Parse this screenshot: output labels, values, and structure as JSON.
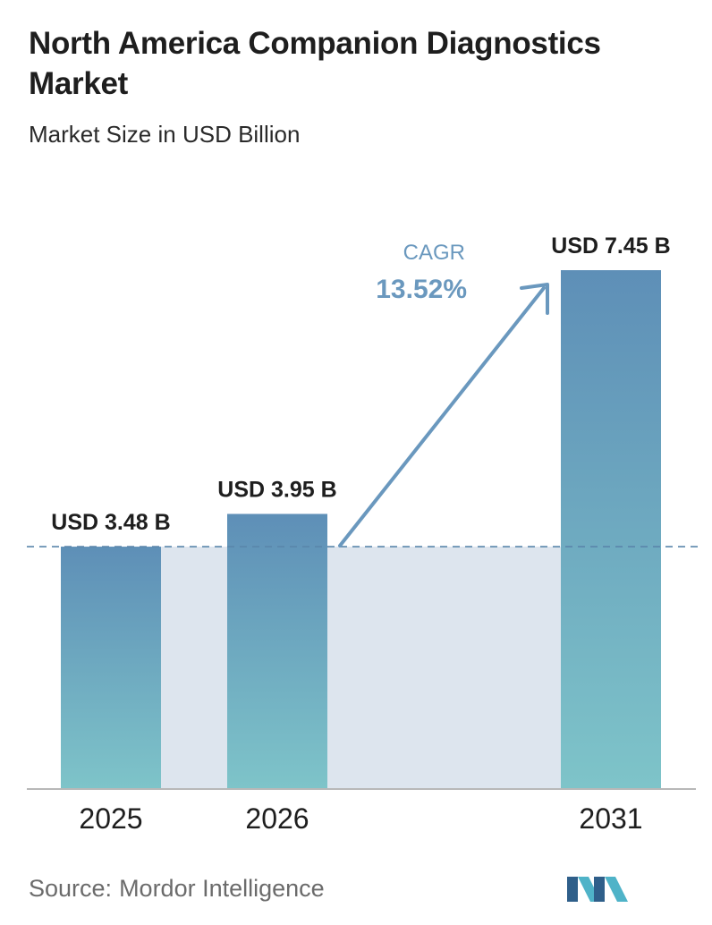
{
  "title": "North America Companion Diagnostics Market",
  "subtitle": "Market Size in USD Billion",
  "source": {
    "label": "Source:",
    "name": "Mordor Intelligence"
  },
  "cagr": {
    "label": "CAGR",
    "value": "13.52%"
  },
  "colors": {
    "bar_top": "#5e8fb7",
    "bar_bottom": "#7ec4c9",
    "band": "#dde5ee",
    "dashed_line": "#5a86ab",
    "arrow": "#6a98be",
    "cagr_text": "#6a98be",
    "baseline": "#b8b8b8"
  },
  "chart_data": {
    "type": "bar",
    "title": "North America Companion Diagnostics Market",
    "subtitle": "Market Size in USD Billion",
    "categories": [
      "2025",
      "2026",
      "2031"
    ],
    "values": [
      3.48,
      3.95,
      7.45
    ],
    "value_labels": [
      "USD 3.48 B",
      "USD 3.95 B",
      "USD 7.45 B"
    ],
    "ylim": [
      0,
      7.45
    ],
    "grid": false,
    "annotation": "CAGR 13.52%"
  }
}
